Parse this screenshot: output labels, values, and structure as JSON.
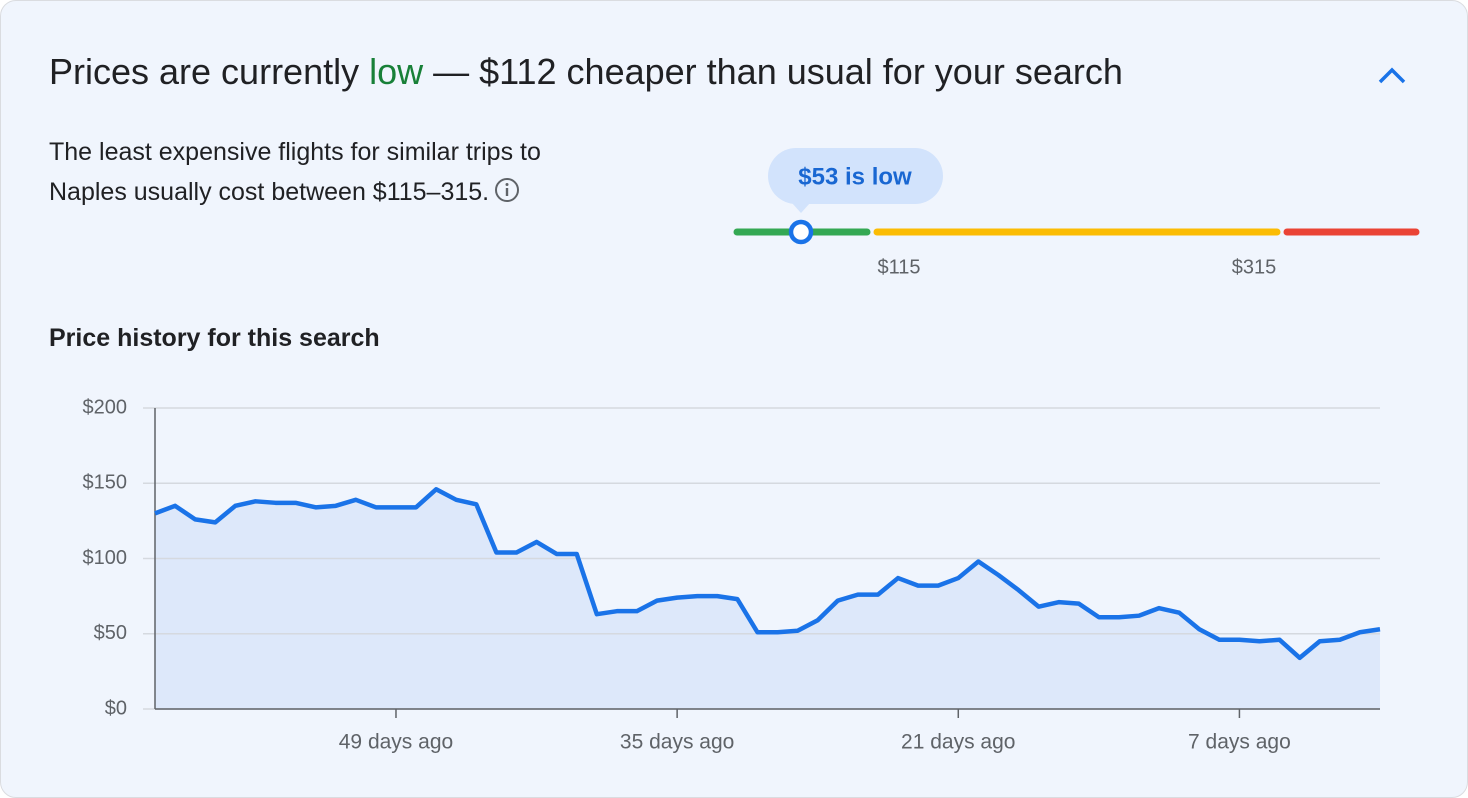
{
  "header": {
    "title_prefix": "Prices are currently ",
    "title_highlight": "low",
    "title_suffix": " — $112 cheaper than usual for your search"
  },
  "summary": {
    "text": "The least expensive flights for similar trips to Naples usually cost between $115–315."
  },
  "range_indicator": {
    "label": "$53 is low",
    "low_label": "$115",
    "high_label": "$315"
  },
  "chart_data": {
    "type": "line",
    "title": "Price history for this search",
    "x": [
      61,
      60,
      59,
      58,
      57,
      56,
      55,
      54,
      53,
      52,
      51,
      50,
      49,
      48,
      47,
      46,
      45,
      44,
      43,
      42,
      41,
      40,
      39,
      38,
      37,
      36,
      35,
      34,
      33,
      32,
      31,
      30,
      29,
      28,
      27,
      26,
      25,
      24,
      23,
      22,
      21,
      20,
      19,
      18,
      17,
      16,
      15,
      14,
      13,
      12,
      11,
      10,
      9,
      8,
      7,
      6,
      5,
      4,
      3,
      2,
      1,
      0
    ],
    "values": [
      130,
      135,
      126,
      124,
      135,
      138,
      137,
      137,
      134,
      135,
      139,
      134,
      134,
      134,
      146,
      139,
      136,
      104,
      104,
      111,
      103,
      103,
      63,
      65,
      65,
      72,
      74,
      75,
      75,
      73,
      51,
      51,
      52,
      59,
      72,
      76,
      76,
      87,
      82,
      82,
      87,
      98,
      89,
      79,
      68,
      71,
      70,
      61,
      61,
      62,
      67,
      64,
      53,
      46,
      46,
      45,
      46,
      34,
      45,
      46,
      51,
      53
    ],
    "color": "#1a73e8",
    "fill": "#dde8fa",
    "xlim": [
      61,
      0
    ],
    "xticks": [
      {
        "value": 49,
        "label": "49 days ago"
      },
      {
        "value": 35,
        "label": "35 days ago"
      },
      {
        "value": 21,
        "label": "21 days ago"
      },
      {
        "value": 7,
        "label": "7 days ago"
      }
    ],
    "ylim": [
      0,
      200
    ],
    "yticks": [
      {
        "value": 0,
        "label": "$0"
      },
      {
        "value": 50,
        "label": "$50"
      },
      {
        "value": 100,
        "label": "$100"
      },
      {
        "value": 150,
        "label": "$150"
      },
      {
        "value": 200,
        "label": "$200"
      }
    ],
    "grid": true
  }
}
